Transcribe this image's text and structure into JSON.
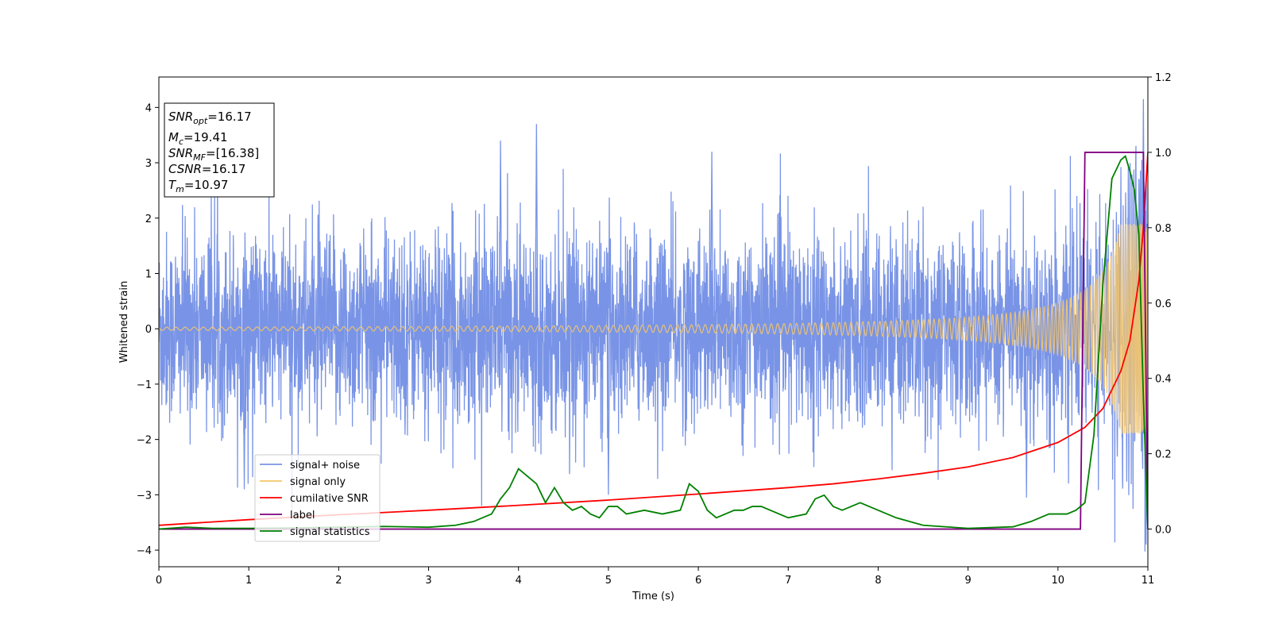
{
  "chart_data": {
    "type": "line",
    "xlabel": "Time (s)",
    "ylabel": "Whitened strain",
    "xlim": [
      0,
      11
    ],
    "ylim_left": [
      -4.3,
      4.55
    ],
    "ylim_right": [
      -0.1,
      1.2
    ],
    "x_ticks": [
      0,
      1,
      2,
      3,
      4,
      5,
      6,
      7,
      8,
      9,
      10,
      11
    ],
    "y_ticks_left": [
      -4,
      -3,
      -2,
      -1,
      0,
      1,
      2,
      3,
      4
    ],
    "y_ticks_right": [
      0.0,
      0.2,
      0.4,
      0.6,
      0.8,
      1.0,
      1.2
    ],
    "grid": false,
    "legend_position": "lower-left",
    "series": [
      {
        "name": "signal+ noise",
        "color": "#7994e6",
        "axis": "left",
        "noise_std": 0.85,
        "spikes": [
          [
            0.95,
            -2.9
          ],
          [
            3.8,
            3.4
          ],
          [
            4.2,
            3.7
          ],
          [
            6.15,
            3.2
          ],
          [
            5.0,
            -3.0
          ],
          [
            9.65,
            -3.05
          ],
          [
            10.95,
            4.15
          ],
          [
            10.98,
            -3.9
          ]
        ]
      },
      {
        "name": "signal only",
        "color": "#f5c56a",
        "axis": "left",
        "chirp_tc": 11.0,
        "amplitude_final": 1.9
      },
      {
        "name": "cumilative SNR",
        "color": "#ff0000",
        "axis": "right",
        "x": [
          0,
          1,
          2,
          3,
          4,
          5,
          6,
          7,
          7.5,
          8,
          8.5,
          9,
          9.5,
          10,
          10.3,
          10.5,
          10.7,
          10.8,
          10.9,
          10.95,
          11.0
        ],
        "y": [
          0.01,
          0.025,
          0.038,
          0.05,
          0.063,
          0.077,
          0.093,
          0.11,
          0.12,
          0.133,
          0.148,
          0.165,
          0.19,
          0.23,
          0.27,
          0.32,
          0.42,
          0.5,
          0.66,
          0.8,
          1.0
        ]
      },
      {
        "name": "label",
        "color": "#800080",
        "axis": "right",
        "x": [
          0,
          10.25,
          10.3,
          10.9,
          10.95,
          11.0
        ],
        "y": [
          0,
          0,
          1,
          1,
          1,
          0
        ]
      },
      {
        "name": "signal statistics",
        "color": "#008000",
        "axis": "right",
        "x": [
          0,
          0.3,
          0.6,
          1.0,
          1.5,
          2.0,
          2.5,
          3.0,
          3.3,
          3.5,
          3.7,
          3.8,
          3.9,
          4.0,
          4.1,
          4.2,
          4.3,
          4.4,
          4.5,
          4.6,
          4.7,
          4.8,
          4.9,
          5.0,
          5.1,
          5.2,
          5.4,
          5.6,
          5.8,
          5.9,
          6.0,
          6.1,
          6.2,
          6.3,
          6.4,
          6.5,
          6.6,
          6.7,
          6.8,
          6.9,
          7.0,
          7.2,
          7.3,
          7.4,
          7.5,
          7.6,
          7.7,
          7.8,
          7.9,
          8.0,
          8.2,
          8.5,
          9.0,
          9.5,
          9.7,
          9.9,
          10.0,
          10.1,
          10.2,
          10.3,
          10.4,
          10.5,
          10.6,
          10.7,
          10.75,
          10.8,
          10.85,
          10.9,
          10.95,
          11.0
        ],
        "y": [
          0.0,
          0.005,
          0.002,
          0.002,
          0.003,
          0.005,
          0.007,
          0.005,
          0.01,
          0.02,
          0.04,
          0.08,
          0.11,
          0.16,
          0.14,
          0.12,
          0.07,
          0.11,
          0.07,
          0.05,
          0.06,
          0.04,
          0.03,
          0.06,
          0.06,
          0.04,
          0.05,
          0.04,
          0.05,
          0.12,
          0.1,
          0.05,
          0.03,
          0.04,
          0.05,
          0.05,
          0.06,
          0.06,
          0.05,
          0.04,
          0.03,
          0.04,
          0.08,
          0.09,
          0.06,
          0.05,
          0.06,
          0.07,
          0.06,
          0.05,
          0.03,
          0.01,
          0.002,
          0.006,
          0.02,
          0.04,
          0.04,
          0.04,
          0.05,
          0.07,
          0.25,
          0.65,
          0.93,
          0.98,
          0.99,
          0.95,
          0.9,
          0.78,
          0.35,
          0.0
        ]
      }
    ]
  },
  "stats_box": [
    {
      "sym": "SNR",
      "sub": "opt",
      "value": "=16.17"
    },
    {
      "sym": "M",
      "sub": "c",
      "value": "=19.41"
    },
    {
      "sym": "SNR",
      "sub": "MF",
      "value": "=[16.38]"
    },
    {
      "sym": "CSNR",
      "sub": "",
      "value": "=16.17"
    },
    {
      "sym": "T",
      "sub": "m",
      "value": "=10.97"
    }
  ]
}
